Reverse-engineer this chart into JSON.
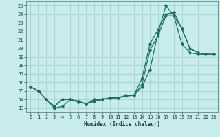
{
  "xlabel": "Humidex (Indice chaleur)",
  "bg_color": "#c8ecec",
  "grid_color": "#aad4d4",
  "line_color": "#1a6e5e",
  "xlim": [
    -0.5,
    23.5
  ],
  "ylim": [
    12.5,
    25.5
  ],
  "yticks": [
    13,
    14,
    15,
    16,
    17,
    18,
    19,
    20,
    21,
    22,
    23,
    24,
    25
  ],
  "xticks": [
    0,
    1,
    2,
    3,
    4,
    5,
    6,
    7,
    8,
    9,
    10,
    11,
    12,
    13,
    14,
    15,
    16,
    17,
    18,
    19,
    20,
    21,
    22,
    23
  ],
  "line1_x": [
    0,
    1,
    2,
    3,
    4,
    5,
    6,
    7,
    8,
    9,
    10,
    11,
    12,
    13,
    14,
    15,
    16,
    17,
    18,
    19,
    20,
    21,
    22,
    23
  ],
  "line1_y": [
    15.5,
    15.0,
    14.0,
    13.0,
    13.2,
    14.0,
    13.7,
    13.5,
    14.0,
    14.0,
    14.2,
    14.2,
    14.4,
    14.5,
    15.5,
    17.5,
    21.8,
    25.0,
    23.8,
    20.5,
    19.5,
    19.3,
    19.3,
    19.3
  ],
  "line2_x": [
    0,
    1,
    2,
    3,
    4,
    5,
    6,
    7,
    8,
    9,
    10,
    11,
    12,
    13,
    14,
    15,
    16,
    17,
    18,
    19,
    20,
    21,
    22,
    23
  ],
  "line2_y": [
    15.5,
    15.0,
    14.0,
    13.2,
    14.0,
    14.0,
    13.8,
    13.5,
    13.8,
    14.0,
    14.2,
    14.2,
    14.5,
    14.5,
    15.8,
    19.8,
    21.5,
    23.8,
    23.8,
    22.3,
    20.0,
    19.5,
    19.3,
    19.3
  ],
  "line3_x": [
    0,
    1,
    2,
    3,
    4,
    5,
    6,
    7,
    8,
    9,
    10,
    11,
    12,
    13,
    14,
    15,
    16,
    17,
    18,
    19,
    20,
    21,
    22,
    23
  ],
  "line3_y": [
    15.5,
    15.0,
    14.0,
    13.2,
    14.0,
    14.0,
    13.8,
    13.5,
    13.8,
    14.0,
    14.2,
    14.2,
    14.5,
    14.5,
    16.5,
    20.5,
    22.2,
    24.0,
    24.2,
    22.3,
    20.0,
    19.5,
    19.3,
    19.3
  ]
}
